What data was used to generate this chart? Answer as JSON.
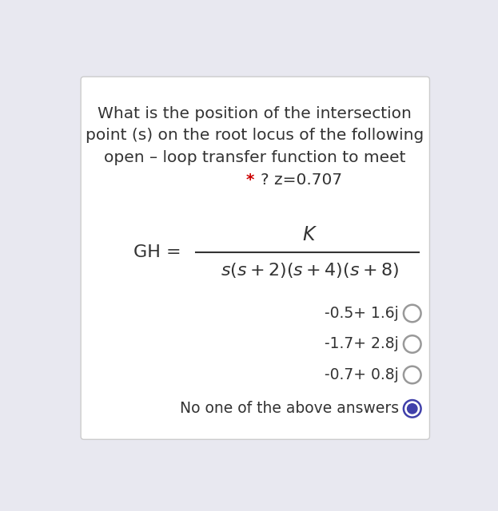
{
  "background_color": "#e8e8f0",
  "card_color": "#ffffff",
  "title_lines": [
    "What is the position of the intersection",
    "point (s) on the root locus of the following",
    "open – loop transfer function to meet"
  ],
  "star_text": "* ",
  "last_line_text": "? z=0.707",
  "title_fontsize": 14.5,
  "gh_label": "GH =",
  "numerator": "$K$",
  "denominator": "$s(s+2)(s+4)(s+8)$",
  "options": [
    "-0.5+ 1.6j",
    "-1.7+ 2.8j",
    "-0.7+ 0.8j",
    "No one of the above answers"
  ],
  "selected_option": 3,
  "option_fontsize": 13.5,
  "radio_outer_color_unselected": "#999999",
  "radio_outer_color_selected": "#4040aa",
  "radio_fill_color": "#4040aa",
  "text_color": "#333333",
  "star_color": "#cc0000",
  "fraction_line_color": "#333333"
}
